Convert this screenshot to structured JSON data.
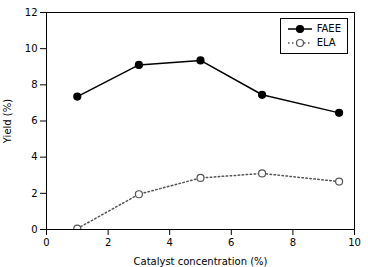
{
  "chart_data": {
    "type": "line",
    "xlabel": "Catalyst concentration (%)",
    "ylabel": "Yield (%)",
    "x": [
      1,
      3,
      5,
      7,
      9.5
    ],
    "series": [
      {
        "name": "FAEE",
        "color": "#000000",
        "marker": "circle",
        "line_style": "solid",
        "values": [
          7.35,
          9.1,
          9.35,
          7.45,
          6.45
        ]
      },
      {
        "name": "ELA",
        "color": "#555555",
        "marker": "open_circle",
        "line_style": "dotted",
        "values": [
          0.05,
          1.95,
          2.85,
          3.1,
          2.65
        ]
      }
    ],
    "xlim": [
      0,
      10
    ],
    "ylim": [
      0,
      12
    ],
    "xticks": [
      0,
      2,
      4,
      6,
      8,
      10
    ],
    "yticks": [
      0,
      2,
      4,
      6,
      8,
      10,
      12
    ],
    "legend": "upper right"
  }
}
